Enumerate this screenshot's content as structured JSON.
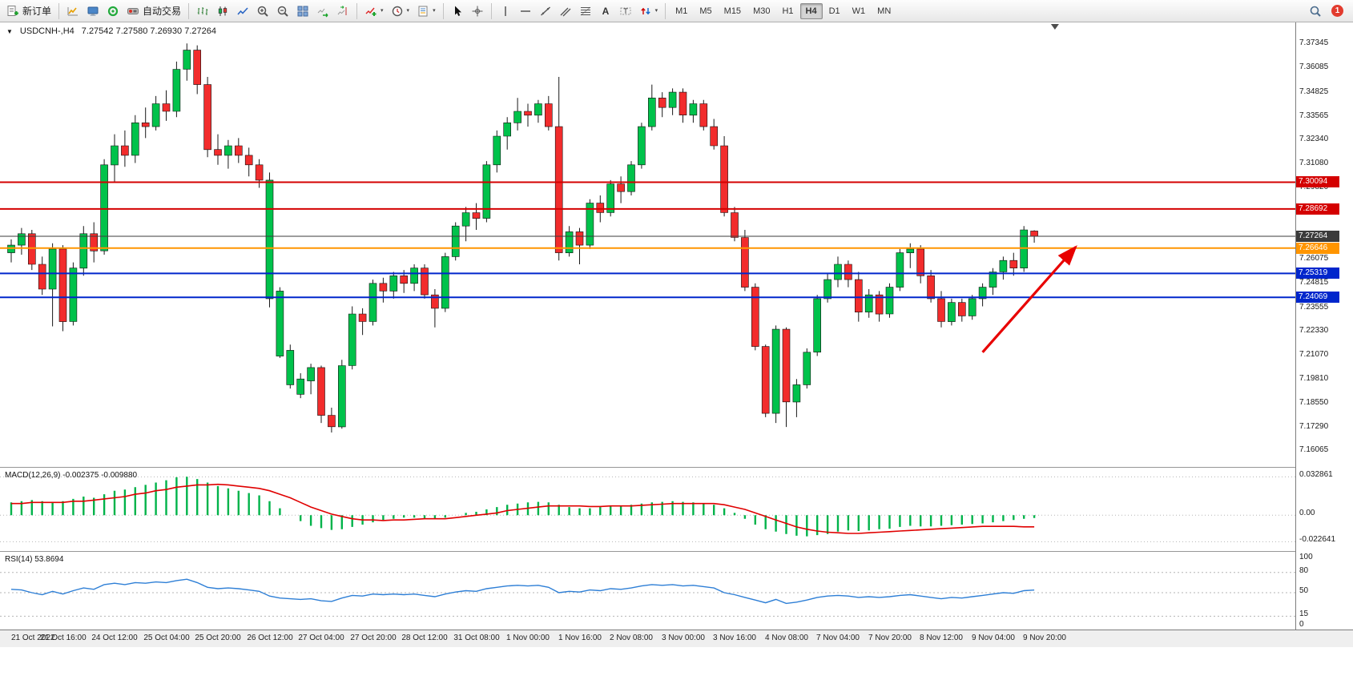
{
  "toolbar": {
    "new_order": "新订单",
    "autotrading": "自动交易",
    "timeframes": [
      "M1",
      "M5",
      "M15",
      "M30",
      "H1",
      "H4",
      "D1",
      "W1",
      "MN"
    ],
    "active_timeframe": "H4",
    "notification_count": "1",
    "icon_names": [
      "new-order-icon",
      "new-chart-icon",
      "profiles-icon",
      "market-watch-icon",
      "autotrading-icon",
      "bar-chart-icon",
      "candlestick-chart-icon",
      "line-chart-icon",
      "zoom-in-icon",
      "zoom-out-icon",
      "tile-windows-icon",
      "auto-scroll-icon",
      "chart-shift-icon",
      "indicators-icon",
      "periods-icon",
      "templates-icon",
      "cursor-icon",
      "crosshair-icon",
      "vertical-line-icon",
      "horizontal-line-icon",
      "trendline-icon",
      "channel-icon",
      "fibonacci-icon",
      "text-icon",
      "label-icon",
      "arrows-icon",
      "search-icon",
      "notification-badge"
    ]
  },
  "chart_title": {
    "symbol": "USDCNH-,H4",
    "ohlc": "7.27542 7.27580 7.26930 7.27264"
  },
  "chart_data": {
    "type": "candlestick",
    "symbol": "USDCNH-",
    "timeframe": "H4",
    "current_bar": {
      "open": 7.27542,
      "high": 7.2758,
      "low": 7.2693,
      "close": 7.27264
    },
    "colors": {
      "bull": "#00C24B",
      "bear": "#F22C2C",
      "wick": "#1a1a1a",
      "macd_hist": "#00B34A",
      "macd_signal": "#E00000",
      "rsi_line": "#2E7FD6"
    },
    "y_range": [
      7.152,
      7.3845
    ],
    "price_axis_labels": [
      "7.37345",
      "7.36085",
      "7.34825",
      "7.33565",
      "7.32340",
      "7.31080",
      "7.29820",
      "7.28560",
      "7.27300",
      "7.26075",
      "7.24815",
      "7.23555",
      "7.22330",
      "7.21070",
      "7.19810",
      "7.18550",
      "7.17290",
      "7.16065"
    ],
    "price_lines": [
      {
        "price": 7.30094,
        "label": "7.30094",
        "color": "#D40000",
        "width": 2
      },
      {
        "price": 7.28692,
        "label": "7.28692",
        "color": "#D40000",
        "width": 2
      },
      {
        "price": 7.27264,
        "label": "7.27264",
        "color": "#3b3b3b",
        "width": 1
      },
      {
        "price": 7.26646,
        "label": "7.26646",
        "color": "#FF9500",
        "width": 2
      },
      {
        "price": 7.25319,
        "label": "7.25319",
        "color": "#0026CC",
        "width": 2
      },
      {
        "price": 7.24069,
        "label": "7.24069",
        "color": "#0026CC",
        "width": 2
      }
    ],
    "candles": [
      [
        7.264,
        7.271,
        7.259,
        7.268
      ],
      [
        7.268,
        7.277,
        7.263,
        7.274
      ],
      [
        7.274,
        7.276,
        7.255,
        7.258
      ],
      [
        7.258,
        7.262,
        7.242,
        7.245
      ],
      [
        7.245,
        7.269,
        7.2255,
        7.266
      ],
      [
        7.266,
        7.268,
        7.223,
        7.228
      ],
      [
        7.228,
        7.259,
        7.226,
        7.256
      ],
      [
        7.256,
        7.278,
        7.252,
        7.274
      ],
      [
        7.274,
        7.28,
        7.259,
        7.265
      ],
      [
        7.265,
        7.313,
        7.263,
        7.31
      ],
      [
        7.31,
        7.326,
        7.301,
        7.32
      ],
      [
        7.32,
        7.328,
        7.309,
        7.315
      ],
      [
        7.315,
        7.336,
        7.311,
        7.332
      ],
      [
        7.332,
        7.34,
        7.324,
        7.33
      ],
      [
        7.33,
        7.346,
        7.328,
        7.342
      ],
      [
        7.342,
        7.349,
        7.333,
        7.338
      ],
      [
        7.338,
        7.364,
        7.335,
        7.36
      ],
      [
        7.36,
        7.3735,
        7.354,
        7.37
      ],
      [
        7.37,
        7.3725,
        7.347,
        7.352
      ],
      [
        7.352,
        7.356,
        7.314,
        7.318
      ],
      [
        7.318,
        7.326,
        7.31,
        7.315
      ],
      [
        7.315,
        7.323,
        7.308,
        7.32
      ],
      [
        7.32,
        7.324,
        7.311,
        7.315
      ],
      [
        7.315,
        7.319,
        7.304,
        7.31
      ],
      [
        7.31,
        7.313,
        7.298,
        7.302
      ],
      [
        7.24,
        7.306,
        7.2355,
        7.302
      ],
      [
        7.21,
        7.246,
        7.209,
        7.244
      ],
      [
        7.195,
        7.216,
        7.193,
        7.213
      ],
      [
        7.19,
        7.201,
        7.188,
        7.198
      ],
      [
        7.197,
        7.206,
        7.19,
        7.204
      ],
      [
        7.204,
        7.205,
        7.175,
        7.179
      ],
      [
        7.179,
        7.183,
        7.17,
        7.173
      ],
      [
        7.173,
        7.208,
        7.172,
        7.205
      ],
      [
        7.205,
        7.236,
        7.203,
        7.232
      ],
      [
        7.232,
        7.235,
        7.221,
        7.228
      ],
      [
        7.228,
        7.25,
        7.226,
        7.248
      ],
      [
        7.248,
        7.251,
        7.238,
        7.244
      ],
      [
        7.244,
        7.254,
        7.24,
        7.252
      ],
      [
        7.252,
        7.255,
        7.243,
        7.248
      ],
      [
        7.248,
        7.258,
        7.244,
        7.256
      ],
      [
        7.256,
        7.258,
        7.24,
        7.242
      ],
      [
        7.242,
        7.245,
        7.225,
        7.235
      ],
      [
        7.235,
        7.264,
        7.233,
        7.262
      ],
      [
        7.262,
        7.28,
        7.26,
        7.278
      ],
      [
        7.278,
        7.288,
        7.27,
        7.285
      ],
      [
        7.285,
        7.29,
        7.276,
        7.282
      ],
      [
        7.282,
        7.312,
        7.28,
        7.31
      ],
      [
        7.31,
        7.328,
        7.306,
        7.325
      ],
      [
        7.325,
        7.335,
        7.318,
        7.332
      ],
      [
        7.332,
        7.345,
        7.328,
        7.338
      ],
      [
        7.338,
        7.342,
        7.33,
        7.336
      ],
      [
        7.336,
        7.344,
        7.332,
        7.342
      ],
      [
        7.342,
        7.346,
        7.328,
        7.33
      ],
      [
        7.33,
        7.356,
        7.26,
        7.264
      ],
      [
        7.264,
        7.278,
        7.262,
        7.275
      ],
      [
        7.275,
        7.277,
        7.258,
        7.268
      ],
      [
        7.268,
        7.292,
        7.266,
        7.29
      ],
      [
        7.29,
        7.294,
        7.28,
        7.285
      ],
      [
        7.285,
        7.302,
        7.283,
        7.3
      ],
      [
        7.3,
        7.304,
        7.29,
        7.296
      ],
      [
        7.296,
        7.312,
        7.294,
        7.31
      ],
      [
        7.31,
        7.332,
        7.308,
        7.33
      ],
      [
        7.33,
        7.352,
        7.328,
        7.345
      ],
      [
        7.345,
        7.348,
        7.335,
        7.34
      ],
      [
        7.34,
        7.35,
        7.336,
        7.348
      ],
      [
        7.348,
        7.35,
        7.332,
        7.336
      ],
      [
        7.336,
        7.344,
        7.332,
        7.342
      ],
      [
        7.342,
        7.344,
        7.328,
        7.33
      ],
      [
        7.33,
        7.334,
        7.318,
        7.32
      ],
      [
        7.32,
        7.325,
        7.283,
        7.285
      ],
      [
        7.285,
        7.288,
        7.27,
        7.272
      ],
      [
        7.272,
        7.276,
        7.244,
        7.246
      ],
      [
        7.246,
        7.248,
        7.213,
        7.215
      ],
      [
        7.215,
        7.216,
        7.178,
        7.18
      ],
      [
        7.18,
        7.226,
        7.175,
        7.224
      ],
      [
        7.224,
        7.225,
        7.1729,
        7.186
      ],
      [
        7.186,
        7.198,
        7.178,
        7.195
      ],
      [
        7.195,
        7.214,
        7.193,
        7.212
      ],
      [
        7.212,
        7.242,
        7.21,
        7.24
      ],
      [
        7.24,
        7.253,
        7.238,
        7.25
      ],
      [
        7.25,
        7.262,
        7.246,
        7.258
      ],
      [
        7.258,
        7.26,
        7.246,
        7.25
      ],
      [
        7.25,
        7.254,
        7.228,
        7.233
      ],
      [
        7.233,
        7.245,
        7.23,
        7.242
      ],
      [
        7.242,
        7.244,
        7.228,
        7.232
      ],
      [
        7.232,
        7.248,
        7.23,
        7.246
      ],
      [
        7.246,
        7.266,
        7.244,
        7.264
      ],
      [
        7.264,
        7.269,
        7.256,
        7.266
      ],
      [
        7.266,
        7.268,
        7.248,
        7.252
      ],
      [
        7.252,
        7.255,
        7.238,
        7.24
      ],
      [
        7.24,
        7.244,
        7.225,
        7.228
      ],
      [
        7.228,
        7.24,
        7.226,
        7.238
      ],
      [
        7.238,
        7.24,
        7.228,
        7.231
      ],
      [
        7.231,
        7.242,
        7.229,
        7.24
      ],
      [
        7.24,
        7.248,
        7.236,
        7.246
      ],
      [
        7.246,
        7.256,
        7.242,
        7.254
      ],
      [
        7.254,
        7.262,
        7.25,
        7.26
      ],
      [
        7.26,
        7.264,
        7.252,
        7.256
      ],
      [
        7.256,
        7.278,
        7.254,
        7.276
      ],
      [
        7.27542,
        7.2758,
        7.2693,
        7.27264
      ]
    ],
    "time_labels": [
      "21 Oct 2022",
      "21 Oct 16:00",
      "24 Oct 12:00",
      "25 Oct 04:00",
      "25 Oct 20:00",
      "26 Oct 12:00",
      "27 Oct 04:00",
      "27 Oct 20:00",
      "28 Oct 12:00",
      "31 Oct 08:00",
      "1 Nov 00:00",
      "1 Nov 16:00",
      "2 Nov 08:00",
      "3 Nov 00:00",
      "3 Nov 16:00",
      "4 Nov 08:00",
      "7 Nov 04:00",
      "7 Nov 20:00",
      "8 Nov 12:00",
      "9 Nov 04:00",
      "9 Nov 20:00"
    ],
    "trend_arrow": {
      "from": {
        "index": 94,
        "price": 7.212
      },
      "to": {
        "index": 103,
        "price": 7.267
      },
      "color": "#E80000"
    },
    "shift_marker_index": 101,
    "macd": {
      "label": "MACD(12,26,9) -0.002375 -0.009880",
      "name": "MACD",
      "params": [
        12,
        26,
        9
      ],
      "value": -0.002375,
      "signal_value": -0.00988,
      "axis_labels": [
        "0.032861",
        "0.00",
        "-0.022641"
      ],
      "y_range": [
        -0.0265,
        0.0345
      ],
      "histogram": [
        0.011,
        0.012,
        0.013,
        0.012,
        0.011,
        0.012,
        0.014,
        0.016,
        0.015,
        0.018,
        0.021,
        0.022,
        0.024,
        0.026,
        0.028,
        0.03,
        0.0325,
        0.0329,
        0.031,
        0.028,
        0.025,
        0.023,
        0.021,
        0.019,
        0.017,
        0.012,
        0.006,
        0.0,
        -0.005,
        -0.009,
        -0.011,
        -0.0125,
        -0.012,
        -0.01,
        -0.008,
        -0.006,
        -0.004,
        -0.003,
        -0.002,
        -0.002,
        -0.0025,
        -0.003,
        -0.002,
        0.0,
        0.002,
        0.003,
        0.005,
        0.007,
        0.009,
        0.01,
        0.011,
        0.0115,
        0.011,
        0.009,
        0.007,
        0.006,
        0.006,
        0.007,
        0.008,
        0.008,
        0.009,
        0.01,
        0.011,
        0.0115,
        0.012,
        0.0115,
        0.011,
        0.01,
        0.009,
        0.006,
        0.002,
        -0.003,
        -0.008,
        -0.012,
        -0.014,
        -0.016,
        -0.0175,
        -0.018,
        -0.017,
        -0.016,
        -0.014,
        -0.013,
        -0.0135,
        -0.013,
        -0.012,
        -0.0115,
        -0.01,
        -0.009,
        -0.0095,
        -0.0095,
        -0.009,
        -0.0085,
        -0.008,
        -0.0075,
        -0.007,
        -0.006,
        -0.005,
        -0.004,
        -0.003,
        -0.002375
      ],
      "signal": [
        0.01,
        0.01,
        0.011,
        0.011,
        0.011,
        0.011,
        0.012,
        0.012,
        0.013,
        0.014,
        0.015,
        0.016,
        0.018,
        0.019,
        0.021,
        0.022,
        0.024,
        0.025,
        0.026,
        0.026,
        0.0265,
        0.026,
        0.025,
        0.024,
        0.023,
        0.021,
        0.018,
        0.015,
        0.011,
        0.007,
        0.004,
        0.001,
        -0.001,
        -0.003,
        -0.004,
        -0.004,
        -0.0045,
        -0.004,
        -0.004,
        -0.0035,
        -0.003,
        -0.003,
        -0.003,
        -0.002,
        -0.001,
        0.0,
        0.001,
        0.002,
        0.004,
        0.005,
        0.006,
        0.007,
        0.008,
        0.008,
        0.008,
        0.008,
        0.0075,
        0.0075,
        0.008,
        0.008,
        0.008,
        0.0085,
        0.009,
        0.0095,
        0.01,
        0.01,
        0.01,
        0.01,
        0.01,
        0.009,
        0.007,
        0.005,
        0.002,
        -0.001,
        -0.004,
        -0.007,
        -0.01,
        -0.012,
        -0.0135,
        -0.0145,
        -0.015,
        -0.0155,
        -0.0155,
        -0.015,
        -0.0145,
        -0.014,
        -0.0135,
        -0.013,
        -0.0125,
        -0.012,
        -0.0115,
        -0.011,
        -0.0105,
        -0.01,
        -0.0095,
        -0.0095,
        -0.0095,
        -0.0095,
        -0.0099,
        -0.00988
      ]
    },
    "rsi": {
      "label": "RSI(14) 53.8694",
      "period": 14,
      "value": 53.8694,
      "axis_labels": [
        "100",
        "80",
        "50",
        "15",
        "0"
      ],
      "levels": [
        80,
        50,
        15
      ],
      "y_range": [
        0,
        100
      ],
      "values": [
        55,
        54,
        50,
        47,
        52,
        48,
        53,
        57,
        55,
        62,
        64,
        62,
        65,
        64,
        66,
        65,
        68,
        70,
        65,
        58,
        56,
        57,
        56,
        54,
        52,
        45,
        42,
        41,
        40,
        41,
        38,
        37,
        42,
        46,
        45,
        48,
        47,
        48,
        47,
        48,
        46,
        44,
        48,
        51,
        53,
        52,
        56,
        58,
        60,
        61,
        60,
        61,
        58,
        50,
        52,
        51,
        54,
        53,
        56,
        55,
        57,
        60,
        62,
        61,
        62,
        60,
        61,
        59,
        57,
        50,
        47,
        43,
        39,
        35,
        40,
        34,
        36,
        39,
        43,
        45,
        46,
        45,
        43,
        44,
        43,
        44,
        46,
        47,
        45,
        43,
        41,
        43,
        42,
        44,
        46,
        48,
        50,
        49,
        53,
        53.87
      ]
    }
  }
}
